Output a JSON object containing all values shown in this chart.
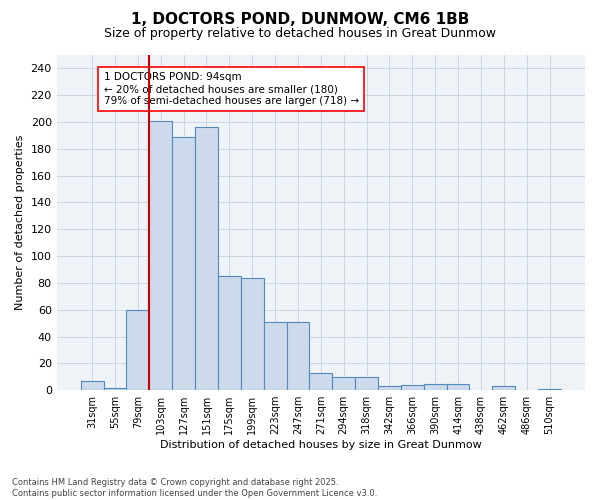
{
  "title": "1, DOCTORS POND, DUNMOW, CM6 1BB",
  "subtitle": "Size of property relative to detached houses in Great Dunmow",
  "xlabel": "Distribution of detached houses by size in Great Dunmow",
  "ylabel": "Number of detached properties",
  "categories": [
    "31sqm",
    "55sqm",
    "79sqm",
    "103sqm",
    "127sqm",
    "151sqm",
    "175sqm",
    "199sqm",
    "223sqm",
    "247sqm",
    "271sqm",
    "294sqm",
    "318sqm",
    "342sqm",
    "366sqm",
    "390sqm",
    "414sqm",
    "438sqm",
    "462sqm",
    "486sqm",
    "510sqm"
  ],
  "values": [
    7,
    2,
    60,
    201,
    189,
    196,
    85,
    84,
    51,
    51,
    13,
    10,
    10,
    3,
    4,
    5,
    5,
    0,
    3,
    0,
    1
  ],
  "bar_color": "#ccdaeb",
  "bar_edge_color": "#5588bb",
  "vline_x_pos": 2.5,
  "vline_color": "#cc0000",
  "annotation_text": "1 DOCTORS POND: 94sqm\n← 20% of detached houses are smaller (180)\n79% of semi-detached houses are larger (718) →",
  "ylim": [
    0,
    250
  ],
  "bg_color": "#ffffff",
  "plot_bg_color": "#eef3f8",
  "grid_color": "#c5cfe0",
  "title_fontsize": 11,
  "subtitle_fontsize": 9,
  "axis_label_fontsize": 8,
  "tick_fontsize": 7,
  "footer": "Contains HM Land Registry data © Crown copyright and database right 2025.\nContains public sector information licensed under the Open Government Licence v3.0."
}
